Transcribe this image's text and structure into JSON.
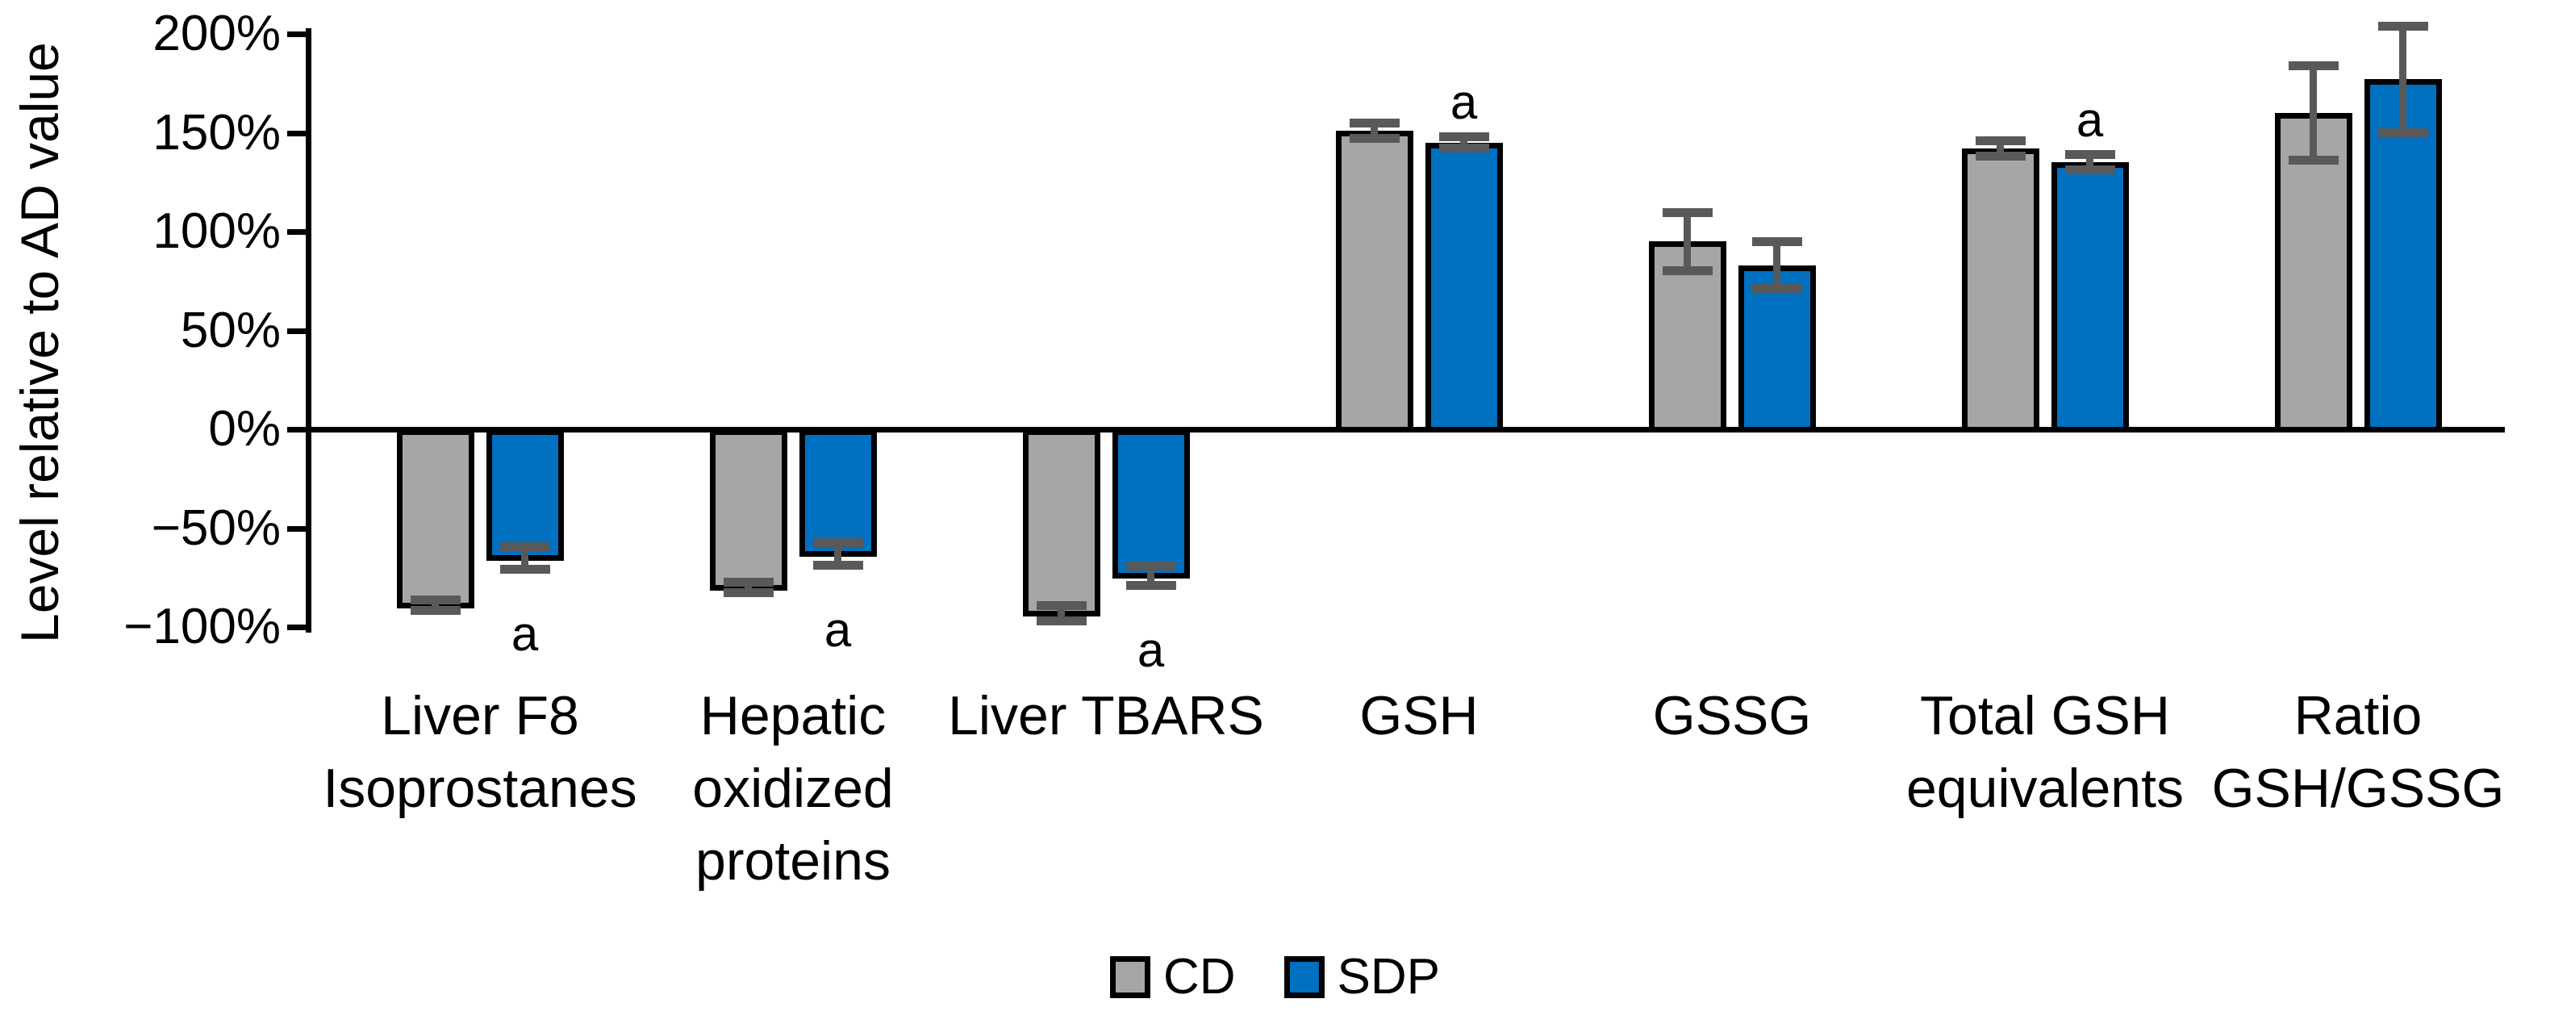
{
  "chart_data": {
    "type": "bar",
    "title": "",
    "ylabel": "Level relative to AD value",
    "xlabel": "",
    "grid": false,
    "legend_position": "bottom",
    "ylim": [
      -100,
      200
    ],
    "y_ticks": [
      {
        "label": "200%",
        "value": 200
      },
      {
        "label": "150%",
        "value": 150
      },
      {
        "label": "100%",
        "value": 100
      },
      {
        "label": "50%",
        "value": 50
      },
      {
        "label": "0%",
        "value": 0
      },
      {
        "label": "−50%",
        "value": -50
      },
      {
        "label": "−100%",
        "value": -100
      }
    ],
    "categories": [
      "Liver F8\nIsoprostanes",
      "Hepatic\noxidized\nproteins",
      "Liver TBARS",
      "GSH",
      "GSSG",
      "Total GSH\nequivalents",
      "Ratio\nGSH/GSSG"
    ],
    "series": [
      {
        "name": "CD",
        "color": "#A6A6A6",
        "values": [
          -89,
          -80,
          -93,
          151,
          95,
          142,
          160
        ],
        "errors": [
          3,
          3,
          4,
          4,
          15,
          4,
          24
        ]
      },
      {
        "name": "SDP",
        "color": "#0070C0",
        "values": [
          -65,
          -63,
          -74,
          145,
          83,
          135,
          177
        ],
        "errors": [
          6,
          6,
          5,
          3,
          12,
          4,
          27
        ]
      }
    ],
    "significance": {
      "letter": "a",
      "on_series": "SDP",
      "flags": [
        true,
        true,
        true,
        true,
        false,
        true,
        false
      ]
    },
    "error_bar_color": "#595959",
    "bar_border_color": "#000000"
  },
  "legend": {
    "items": [
      {
        "label": "CD",
        "color": "#A6A6A6"
      },
      {
        "label": "SDP",
        "color": "#0070C0"
      }
    ]
  }
}
